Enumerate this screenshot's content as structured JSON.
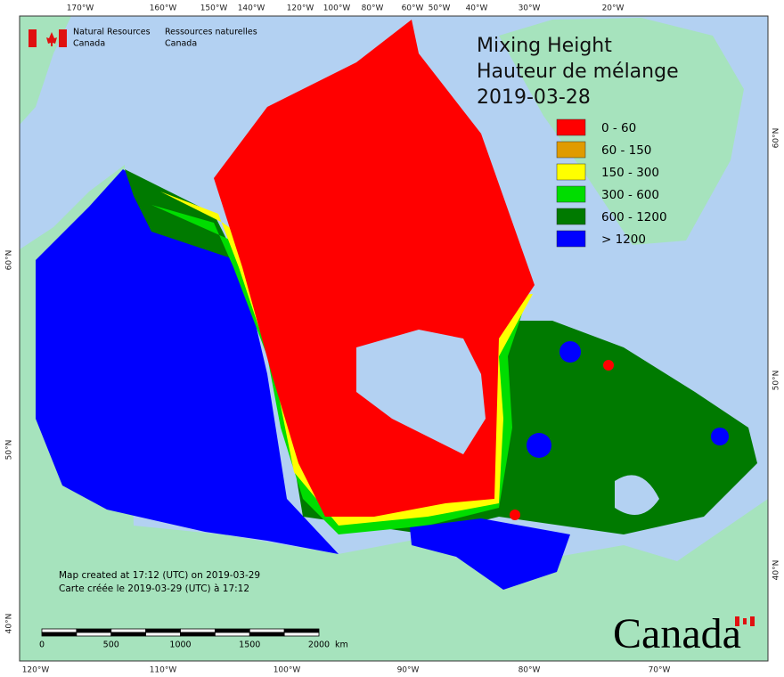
{
  "header": {
    "agency_en": "Natural Resources",
    "agency_en_2": "Canada",
    "agency_fr": "Ressources naturelles",
    "agency_fr_2": "Canada"
  },
  "title": [
    "Mixing Height",
    "Hauteur de mélange",
    "2019-03-28"
  ],
  "legend": [
    {
      "label": "0 - 60",
      "color": "#ff0000"
    },
    {
      "label": "60 - 150",
      "color": "#e09b00"
    },
    {
      "label": "150 - 300",
      "color": "#ffff00"
    },
    {
      "label": "300 - 600",
      "color": "#00dd00"
    },
    {
      "label": "600 - 1200",
      "color": "#007a00"
    },
    {
      "label": "> 1200",
      "color": "#0000ff"
    }
  ],
  "top_longitudes": [
    "170°W",
    "160°W",
    "150°W",
    "140°W",
    "120°W",
    "100°W",
    "80°W",
    "60°W",
    "50°W",
    "40°W",
    "30°W",
    "20°W"
  ],
  "bottom_longitudes": [
    "120°W",
    "110°W",
    "100°W",
    "90°W",
    "80°W",
    "70°W"
  ],
  "left_latitudes": [
    "60°N",
    "50°N",
    "40°N"
  ],
  "right_latitudes": [
    "60°N",
    "50°N",
    "40°N"
  ],
  "credits": [
    "Map created at 17:12 (UTC) on 2019-03-29",
    "Carte créée le 2019-03-29 (UTC) à 17:12"
  ],
  "scale_bar": {
    "labels": [
      0,
      500,
      1000,
      1500,
      2000
    ],
    "unit": "km"
  },
  "wordmark": "Canada"
}
